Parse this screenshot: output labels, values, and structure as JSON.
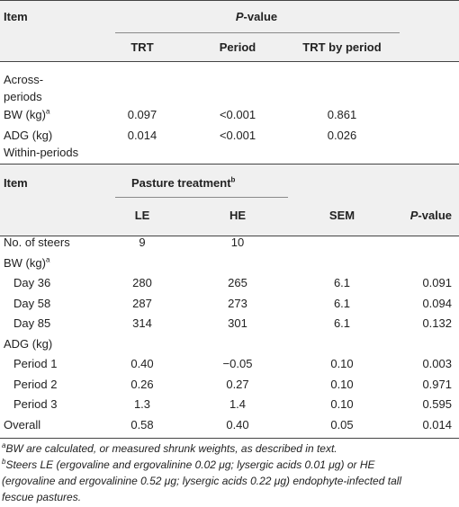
{
  "table1": {
    "header_item": "Item",
    "header_pvalue_prefix": "P",
    "header_pvalue_suffix": "-value",
    "col_headers": [
      "TRT",
      "Period",
      "TRT by period"
    ],
    "section_label_line1": "Across-",
    "section_label_line2": "periods",
    "rows": [
      {
        "label": "BW (kg)",
        "sup": "a",
        "trt": "0.097",
        "period": "<0.001",
        "trt_by_period": "0.861"
      },
      {
        "label": "ADG (kg)",
        "sup": "",
        "trt": "0.014",
        "period": "<0.001",
        "trt_by_period": "0.026"
      }
    ],
    "section2_label": "Within-periods"
  },
  "table2": {
    "header_item": "Item",
    "header_pasture": "Pasture treatment",
    "header_pasture_sup": "b",
    "col_headers": [
      "LE",
      "HE",
      "SEM"
    ],
    "header_pvalue_prefix": "P",
    "header_pvalue_suffix": "-value",
    "rows": [
      {
        "label": "No. of steers",
        "le": "9",
        "he": "10",
        "sem": "",
        "p": ""
      },
      {
        "label": "BW (kg)",
        "sup": "a",
        "le": "",
        "he": "",
        "sem": "",
        "p": ""
      },
      {
        "label": "Day 36",
        "le": "280",
        "he": "265",
        "sem": "6.1",
        "p": "0.091"
      },
      {
        "label": "Day 58",
        "le": "287",
        "he": "273",
        "sem": "6.1",
        "p": "0.094"
      },
      {
        "label": "Day 85",
        "le": "314",
        "he": "301",
        "sem": "6.1",
        "p": "0.132"
      },
      {
        "label": "ADG (kg)",
        "le": "",
        "he": "",
        "sem": "",
        "p": ""
      },
      {
        "label": "Period 1",
        "le": "0.40",
        "he": "−0.05",
        "sem": "0.10",
        "p": "0.003"
      },
      {
        "label": "Period 2",
        "le": "0.26",
        "he": "0.27",
        "sem": "0.10",
        "p": "0.971"
      },
      {
        "label": "Period 3",
        "le": "1.3",
        "he": "1.4",
        "sem": "0.10",
        "p": "0.595"
      },
      {
        "label": "Overall",
        "le": "0.58",
        "he": "0.40",
        "sem": "0.05",
        "p": "0.014"
      }
    ]
  },
  "footnotes": {
    "a_sup": "a",
    "a_text": "BW are calculated, or measured shrunk weights, as described in text.",
    "b_sup": "b",
    "b_line1": "Steers LE (ergovaline and ergovalinine 0.02 μg; lysergic acids 0.01 μg) or HE",
    "b_line2": "(ergovaline and ergovalinine 0.52 μg; lysergic acids 0.22 μg) endophyte-infected tall",
    "b_line3": "fescue pastures."
  }
}
